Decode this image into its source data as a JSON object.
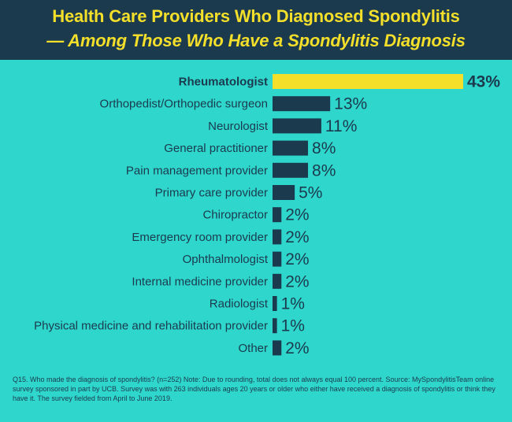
{
  "title_line1": "Health Care Providers Who Diagnosed Spondylitis",
  "title_line2": "— Among Those Who Have a Spondylitis Diagnosis",
  "footnote": "Q15. Who made the diagnosis of spondylitis? (n=252) Note: Due to rounding, total does not always equal 100 percent. Source: MySpondylitisTeam online survey sponsored in part by UCB. Survey was with 263 individuals ages 20 years or older who either have received a diagnosis of spondylitis or think they have it. The survey fielded from April to June 2019.",
  "colors": {
    "background": "#2fd6cc",
    "header": "#1b3a4e",
    "title": "#f4df2a",
    "bar": "#1b3a4e",
    "highlight_bar": "#f4df2a"
  },
  "chart_data": {
    "type": "bar",
    "orientation": "horizontal",
    "categories": [
      "Rheumatologist",
      "Orthopedist/Orthopedic surgeon",
      "Neurologist",
      "General practitioner",
      "Pain management provider",
      "Primary care provider",
      "Chiropractor",
      "Emergency room provider",
      "Ophthalmologist",
      "Internal medicine provider",
      "Radiologist",
      "Physical medicine and rehabilitation provider",
      "Other"
    ],
    "values": [
      43,
      13,
      11,
      8,
      8,
      5,
      2,
      2,
      2,
      2,
      1,
      1,
      2
    ],
    "value_labels": [
      "43%",
      "13%",
      "11%",
      "8%",
      "8%",
      "5%",
      "2%",
      "2%",
      "2%",
      "2%",
      "1%",
      "1%",
      "2%"
    ],
    "highlight_index": 0,
    "unit": "%",
    "xlim": [
      0,
      43
    ],
    "grid": false,
    "legend": "none"
  }
}
